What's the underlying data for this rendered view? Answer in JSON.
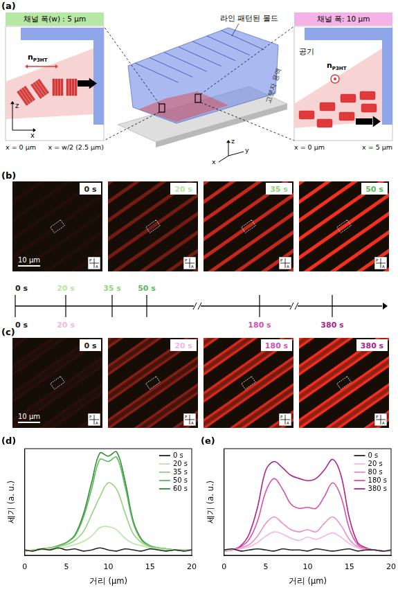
{
  "panels": {
    "a": {
      "label": "(a)",
      "mold": "라인 패턴된 몰드",
      "solution": "고분자 용액",
      "axes": [
        "x",
        "y",
        "z"
      ],
      "left_inset": {
        "title": "채널 폭(w) : 5 μm",
        "orientation_symbol": {
          "base": "n",
          "sub": "P3HT"
        },
        "axes": [
          "z",
          "x"
        ],
        "start": "x = 0 μm",
        "end": "x = w/2 (2.5 μm)"
      },
      "right_inset": {
        "title": "채널 폭: 10 μm",
        "air": "공기",
        "orientation_symbol": {
          "base": "n",
          "sub": "P3HT"
        },
        "start": "x = 0 μm",
        "end": "x = 5 μm"
      }
    },
    "b": {
      "label": "(b)",
      "times": [
        "0 s",
        "20 s",
        "35 s",
        "50 s"
      ],
      "scale_bar": "10 μm",
      "polarizer": [
        "P",
        "A"
      ]
    },
    "timeline": {
      "top": [
        "0 s",
        "20 s",
        "35 s",
        "50 s"
      ],
      "bottom": [
        "0 s",
        "20 s",
        "180 s",
        "380 s"
      ]
    },
    "c": {
      "label": "(c)",
      "times": [
        "0 s",
        "20 s",
        "180 s",
        "380 s"
      ],
      "scale_bar": "10 μm",
      "polarizer": [
        "P",
        "A"
      ]
    }
  },
  "chart_data": [
    {
      "type": "line",
      "title": "(d)",
      "x_label": "거리 (μm)",
      "y_label": "세기 (a. u.)",
      "x": [
        0,
        1,
        2,
        3,
        4,
        5,
        6,
        7,
        8,
        9,
        10,
        11,
        12,
        13,
        14,
        15,
        16,
        17,
        18,
        19,
        20
      ],
      "xlim": [
        0,
        20
      ],
      "xticks": [
        0,
        5,
        10,
        15,
        20
      ],
      "ylim": [
        0,
        1
      ],
      "yticks": [],
      "tick_labels": "x",
      "grid": false,
      "legend": "upper right",
      "series": [
        {
          "name": "0 s",
          "color": "#222222",
          "values": [
            0.05,
            0.04,
            0.06,
            0.05,
            0.07,
            0.05,
            0.06,
            0.04,
            0.05,
            0.07,
            0.05,
            0.04,
            0.06,
            0.05,
            0.04,
            0.06,
            0.05,
            0.04,
            0.05,
            0.04,
            0.05
          ]
        },
        {
          "name": "20 s",
          "color": "#b9e6a3",
          "values": [
            0.04,
            0.05,
            0.05,
            0.06,
            0.06,
            0.08,
            0.1,
            0.13,
            0.18,
            0.26,
            0.27,
            0.24,
            0.16,
            0.11,
            0.09,
            0.07,
            0.06,
            0.05,
            0.05,
            0.05,
            0.05
          ]
        },
        {
          "name": "35 s",
          "color": "#8fd47a",
          "values": [
            0.04,
            0.05,
            0.06,
            0.07,
            0.08,
            0.1,
            0.14,
            0.22,
            0.38,
            0.55,
            0.68,
            0.62,
            0.4,
            0.2,
            0.12,
            0.08,
            0.07,
            0.06,
            0.05,
            0.05,
            0.05
          ]
        },
        {
          "name": "50 s",
          "color": "#5cb85c",
          "values": [
            0.04,
            0.05,
            0.06,
            0.07,
            0.09,
            0.12,
            0.18,
            0.35,
            0.62,
            0.9,
            0.88,
            0.92,
            0.65,
            0.3,
            0.14,
            0.09,
            0.07,
            0.06,
            0.05,
            0.05,
            0.05
          ]
        },
        {
          "name": "60 s",
          "color": "#2e8b2e",
          "values": [
            0.04,
            0.05,
            0.06,
            0.07,
            0.09,
            0.12,
            0.19,
            0.38,
            0.68,
            0.96,
            0.93,
            0.97,
            0.7,
            0.32,
            0.15,
            0.09,
            0.07,
            0.06,
            0.05,
            0.05,
            0.05
          ]
        }
      ]
    },
    {
      "type": "line",
      "title": "(e)",
      "x_label": "거리 (μm)",
      "y_label": "세기 (a. u.)",
      "x": [
        0,
        1,
        2,
        3,
        4,
        5,
        6,
        7,
        8,
        9,
        10,
        11,
        12,
        13,
        14,
        15,
        16,
        17,
        18,
        19,
        20
      ],
      "xlim": [
        0,
        20
      ],
      "xticks": [
        0,
        5,
        10,
        15,
        20
      ],
      "ylim": [
        0,
        1
      ],
      "yticks": [],
      "tick_labels": "x",
      "grid": false,
      "legend": "upper right",
      "series": [
        {
          "name": "0 s",
          "color": "#222222",
          "values": [
            0.05,
            0.06,
            0.04,
            0.05,
            0.06,
            0.05,
            0.04,
            0.06,
            0.05,
            0.05,
            0.04,
            0.06,
            0.05,
            0.04,
            0.05,
            0.06,
            0.04,
            0.05,
            0.05,
            0.04,
            0.05
          ]
        },
        {
          "name": "20 s",
          "color": "#f4b8e0",
          "values": [
            0.04,
            0.05,
            0.06,
            0.08,
            0.12,
            0.18,
            0.22,
            0.2,
            0.16,
            0.14,
            0.17,
            0.15,
            0.18,
            0.21,
            0.17,
            0.11,
            0.07,
            0.05,
            0.05,
            0.04,
            0.04
          ]
        },
        {
          "name": "80 s",
          "color": "#ec8ccc",
          "values": [
            0.04,
            0.05,
            0.07,
            0.1,
            0.18,
            0.3,
            0.36,
            0.3,
            0.24,
            0.22,
            0.24,
            0.22,
            0.3,
            0.36,
            0.28,
            0.15,
            0.08,
            0.06,
            0.05,
            0.04,
            0.04
          ]
        },
        {
          "name": "180 s",
          "color": "#d94fb0",
          "values": [
            0.04,
            0.05,
            0.08,
            0.15,
            0.32,
            0.6,
            0.72,
            0.62,
            0.48,
            0.44,
            0.45,
            0.44,
            0.55,
            0.68,
            0.55,
            0.25,
            0.1,
            0.06,
            0.05,
            0.04,
            0.04
          ]
        },
        {
          "name": "380 s",
          "color": "#b0208a",
          "values": [
            0.04,
            0.05,
            0.09,
            0.2,
            0.45,
            0.8,
            0.88,
            0.82,
            0.75,
            0.72,
            0.7,
            0.72,
            0.8,
            0.9,
            0.75,
            0.35,
            0.12,
            0.07,
            0.05,
            0.04,
            0.04
          ]
        }
      ]
    }
  ]
}
